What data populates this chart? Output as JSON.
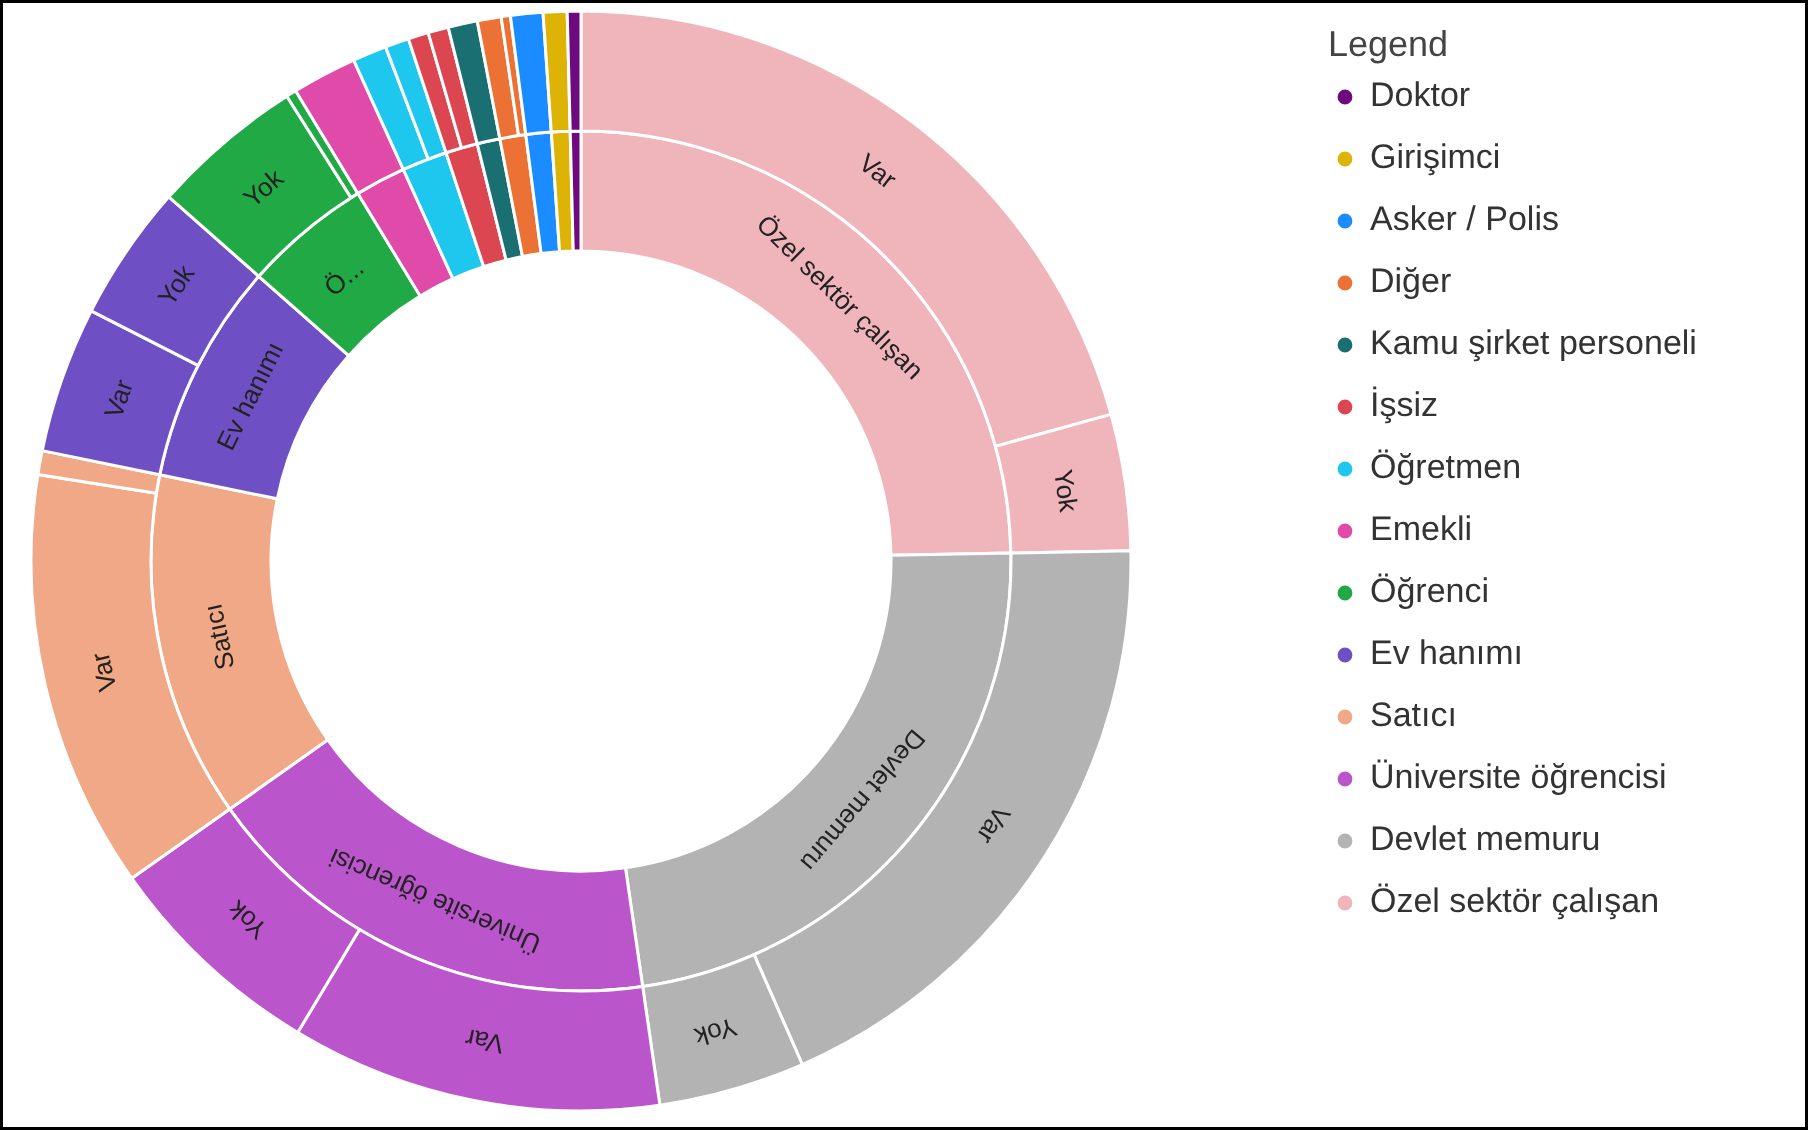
{
  "chart_data": {
    "type": "donut",
    "legend": "right",
    "legend_title": "Legend",
    "categories": [
      "Özel sektör çalışan",
      null,
      "Devlet memuru",
      null,
      "Üniversite öğrencisi",
      null,
      "Satıcı",
      null,
      "Ev hanımı",
      null,
      "Öğrenci",
      null,
      "Emekli",
      "Öğretmen",
      null,
      "İşsiz",
      null,
      "Kamu şirket personeli",
      "Diğer",
      null,
      "Asker / Polis",
      "Girişimci",
      "Doktor"
    ],
    "series": [
      {
        "values": [
          24.7,
          null,
          23.0,
          null,
          17.5,
          null,
          13.0,
          null,
          8.3,
          null,
          4.8,
          null,
          1.9,
          1.7,
          null,
          1.2,
          null,
          0.86,
          0.97,
          null,
          0.95,
          0.7,
          0.4
        ],
        "colors": [
          "#f0b5ba",
          "#f0b5ba",
          "#b3b3b3",
          "#b3b3b3",
          "#bb55cc",
          "#bb55cc",
          "#f0a886",
          "#f0a886",
          "#6f4fc4",
          "#6f4fc4",
          "#21a946",
          "#21a946",
          "#e04aa8",
          "#1ec7ee",
          "#1ec7ee",
          "#db4650",
          "#db4650",
          "#1a6f72",
          "#ec7135",
          "#ec7135",
          "#1a8cff",
          "#ddb406",
          "#6e0a80"
        ],
        "value_labels": [
          "Özel sektör çalışan",
          null,
          "Devlet memuru",
          null,
          "Üniversite öğrencisi",
          null,
          "Satıcı",
          null,
          "Ev hanımı",
          null,
          "Ö...",
          null,
          null,
          null,
          null,
          null,
          null,
          null,
          null,
          null,
          null,
          null,
          null
        ]
      },
      {
        "values": [
          20.7,
          4.0,
          18.7,
          4.3,
          10.9,
          6.6,
          12.3,
          0.7,
          4.3,
          4.0,
          4.5,
          0.3,
          1.9,
          1.0,
          0.7,
          0.6,
          0.6,
          0.86,
          0.7,
          0.27,
          0.95,
          0.7,
          0.4
        ],
        "colors": [
          "#f0b5ba",
          "#f0b5ba",
          "#b3b3b3",
          "#b3b3b3",
          "#bb55cc",
          "#bb55cc",
          "#f0a886",
          "#f0a886",
          "#6f4fc4",
          "#6f4fc4",
          "#21a946",
          "#21a946",
          "#e04aa8",
          "#1ec7ee",
          "#1ec7ee",
          "#db4650",
          "#db4650",
          "#1a6f72",
          "#ec7135",
          "#ec7135",
          "#1a8cff",
          "#ddb406",
          "#6e0a80"
        ],
        "value_labels": [
          "Var",
          "Yok",
          "Var",
          "Yok",
          "Var",
          "Yok",
          "Var",
          null,
          "Var",
          "Yok",
          "Yok",
          null,
          null,
          null,
          null,
          null,
          null,
          null,
          null,
          null,
          null,
          null,
          null
        ]
      }
    ]
  }
}
